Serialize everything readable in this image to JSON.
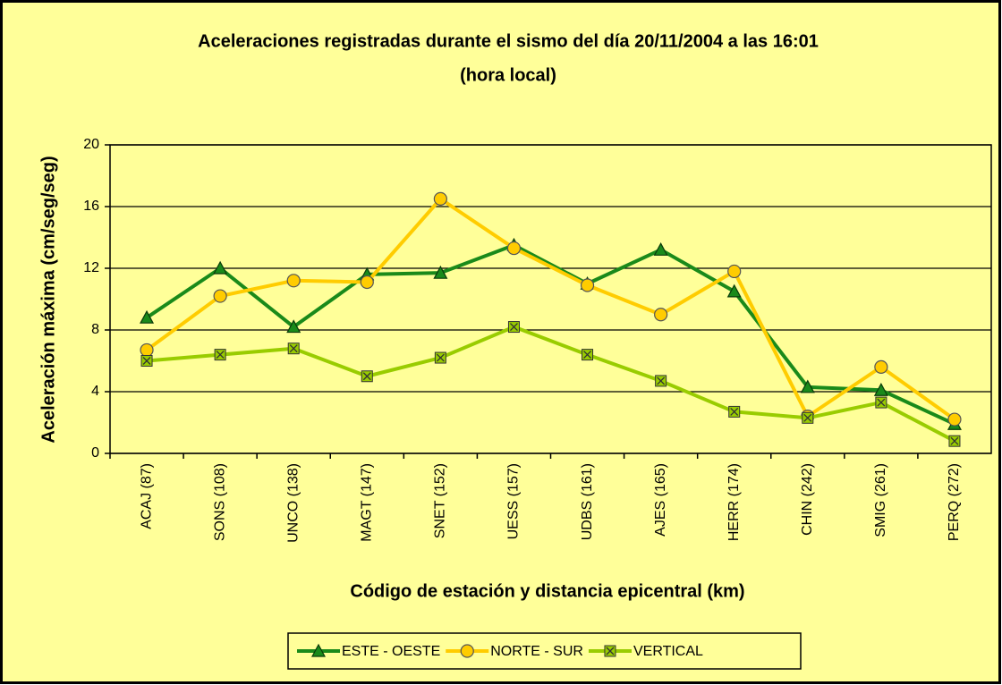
{
  "chart_data": {
    "type": "line",
    "title": "Aceleraciones registradas durante el sismo del día 20/11/2004 a las 16:01",
    "subtitle": "(hora local)",
    "x_label": "Código de estación y distancia epicentral (km)",
    "y_label": "Aceleración máxima (cm/seg/seg)",
    "categories": [
      "ACAJ (87)",
      "SONS (108)",
      "UNCO (138)",
      "MAGT (147)",
      "SNET (152)",
      "UESS (157)",
      "UDBS (161)",
      "AJES (165)",
      "HERR (174)",
      "CHIN (242)",
      "SMIG (261)",
      "PERQ (272)"
    ],
    "series": [
      {
        "name": "ESTE - OESTE",
        "color": "#1a8a1a",
        "marker": "triangle",
        "values": [
          8.8,
          12.0,
          8.2,
          11.6,
          11.7,
          13.5,
          11.0,
          13.2,
          10.5,
          4.3,
          4.1,
          1.9
        ]
      },
      {
        "name": "NORTE - SUR",
        "color": "#ffcc00",
        "marker": "circle",
        "values": [
          6.7,
          10.2,
          11.2,
          11.1,
          16.5,
          13.3,
          10.9,
          9.0,
          11.8,
          2.4,
          5.6,
          2.2
        ]
      },
      {
        "name": "VERTICAL",
        "color": "#99cc00",
        "marker": "square-x",
        "values": [
          6.0,
          6.4,
          6.8,
          5.0,
          6.2,
          8.2,
          6.4,
          4.7,
          2.7,
          2.3,
          3.3,
          0.8
        ]
      }
    ],
    "ylim": [
      0,
      20
    ],
    "yticks": [
      0,
      4,
      8,
      12,
      16,
      20
    ],
    "grid": true,
    "legend": "bottom"
  }
}
